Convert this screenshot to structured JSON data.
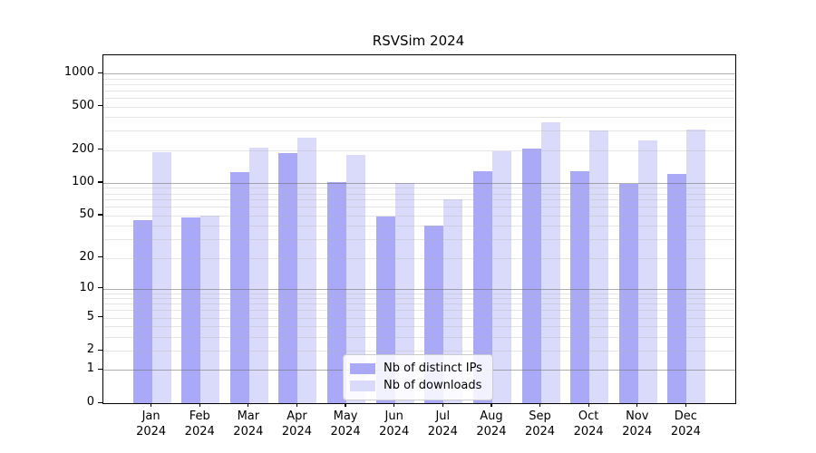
{
  "chart_data": {
    "type": "bar",
    "title": "RSVSim 2024",
    "categories": [
      "Jan",
      "Feb",
      "Mar",
      "Apr",
      "May",
      "Jun",
      "Jul",
      "Aug",
      "Sep",
      "Oct",
      "Nov",
      "Dec"
    ],
    "year_label": "2024",
    "series": [
      {
        "name": "Nb of distinct IPs",
        "color": "#a9a9f7",
        "values": [
          45,
          48,
          125,
          187,
          101,
          49,
          40,
          128,
          207,
          128,
          97,
          122
        ]
      },
      {
        "name": "Nb of downloads",
        "color": "#dadafa",
        "values": [
          190,
          50,
          210,
          260,
          180,
          100,
          70,
          195,
          356,
          304,
          245,
          305
        ]
      }
    ],
    "y_axis": {
      "scale": "log1p",
      "ticks": [
        0,
        1,
        2,
        5,
        10,
        20,
        50,
        100,
        200,
        500,
        1000
      ],
      "minor_gridlines": [
        3,
        4,
        6,
        7,
        8,
        9,
        30,
        40,
        60,
        70,
        80,
        90,
        300,
        400,
        600,
        700,
        800,
        900
      ],
      "emphasized_gridlines": [
        1,
        10,
        100,
        1000
      ],
      "range_max": 1000
    },
    "grid": "on",
    "grid_color": "rgba(180,180,180,0.35)",
    "grid_emphasis_color": "rgba(110,110,110,0.55)",
    "legend": {
      "position": "inside-bottom-center",
      "entries": [
        "Nb of distinct IPs",
        "Nb of downloads"
      ]
    }
  }
}
